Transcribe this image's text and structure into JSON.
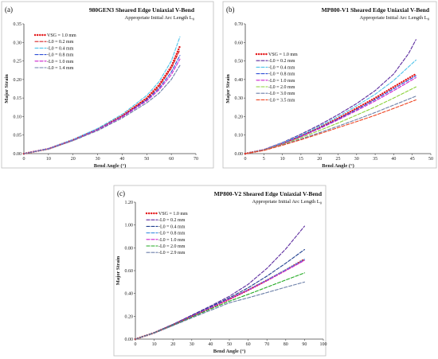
{
  "chart_data": [
    {
      "type": "line",
      "panel_label": "(a)",
      "title": "980GEN3 Sheared Edge Uniaxial V-Bend",
      "subtitle": "Appropriate Initial Arc Length L",
      "subtitle_sub": "0",
      "xlabel": "Bend Angle (°)",
      "ylabel": "Major Strain",
      "xlim": [
        0,
        70
      ],
      "ylim": [
        0,
        0.35
      ],
      "xticks": [
        "0",
        "10",
        "20",
        "30",
        "40",
        "50",
        "60",
        "70"
      ],
      "yticks": [
        "0.00",
        "0.05",
        "0.10",
        "0.15",
        "0.20",
        "0.25",
        "0.30",
        "0.35"
      ],
      "grid": false,
      "legend_position": "top-left",
      "series": [
        {
          "name": "VSG = 1.0 mm",
          "color": "#e41a1c",
          "style": "dot",
          "x": [
            0,
            10,
            20,
            30,
            40,
            50,
            55,
            60,
            63.5
          ],
          "y": [
            0,
            0.013,
            0.037,
            0.066,
            0.102,
            0.15,
            0.185,
            0.235,
            0.29
          ]
        },
        {
          "name": "-L0 = 0.2 mm",
          "color": "#d62728",
          "style": "dash",
          "x": [
            0,
            10,
            20,
            30,
            40,
            50,
            55,
            60,
            63.5
          ],
          "y": [
            0,
            0.013,
            0.036,
            0.065,
            0.1,
            0.147,
            0.181,
            0.23,
            0.28
          ]
        },
        {
          "name": "-L0 = 0.4 mm",
          "color": "#4ec3ea",
          "style": "dash",
          "x": [
            0,
            10,
            20,
            30,
            40,
            50,
            55,
            60,
            63.5
          ],
          "y": [
            0,
            0.014,
            0.038,
            0.068,
            0.106,
            0.157,
            0.194,
            0.25,
            0.315
          ]
        },
        {
          "name": "-L0 = 0.8 mm",
          "color": "#2f4fd6",
          "style": "dash",
          "x": [
            0,
            10,
            20,
            30,
            40,
            50,
            55,
            60,
            63.5
          ],
          "y": [
            0,
            0.013,
            0.036,
            0.065,
            0.1,
            0.145,
            0.176,
            0.22,
            0.265
          ]
        },
        {
          "name": "-L0 = 1.0 mm",
          "color": "#cc22cc",
          "style": "dash",
          "x": [
            0,
            10,
            20,
            30,
            40,
            50,
            55,
            60,
            63.5
          ],
          "y": [
            0,
            0.013,
            0.036,
            0.064,
            0.099,
            0.142,
            0.172,
            0.213,
            0.255
          ]
        },
        {
          "name": "-L0 = 1.4 mm",
          "color": "#6b7fa8",
          "style": "dash",
          "x": [
            0,
            10,
            20,
            30,
            40,
            50,
            55,
            60,
            63.5
          ],
          "y": [
            0,
            0.012,
            0.035,
            0.062,
            0.096,
            0.137,
            0.163,
            0.2,
            0.238
          ]
        }
      ]
    },
    {
      "type": "line",
      "panel_label": "(b)",
      "title": "MP800-V1 Sheared Edge Uniaxial V-Bend",
      "subtitle": "Appropriate Initial Arc Length L",
      "subtitle_sub": "0",
      "xlabel": "Bend Angle (°)",
      "ylabel": "Major Strain",
      "xlim": [
        0,
        50
      ],
      "ylim": [
        0,
        0.7
      ],
      "xticks": [
        "0",
        "5",
        "10",
        "15",
        "20",
        "25",
        "30",
        "35",
        "40",
        "45",
        "50"
      ],
      "yticks": [
        "0.00",
        "0.10",
        "0.20",
        "0.30",
        "0.40",
        "0.50",
        "0.60",
        "0.70"
      ],
      "grid": false,
      "legend_position": "top-left",
      "series": [
        {
          "name": "VSG = 1.0 mm",
          "color": "#e41a1c",
          "style": "dot",
          "x": [
            0,
            5,
            10,
            15,
            20,
            25,
            30,
            35,
            40,
            46
          ],
          "y": [
            0,
            0.02,
            0.055,
            0.095,
            0.14,
            0.19,
            0.245,
            0.3,
            0.36,
            0.43
          ]
        },
        {
          "name": "-L0 = 0.2 mm",
          "color": "#5b2a9e",
          "style": "dash",
          "x": [
            0,
            5,
            10,
            15,
            20,
            25,
            30,
            35,
            40,
            44,
            46
          ],
          "y": [
            0,
            0.022,
            0.06,
            0.105,
            0.155,
            0.21,
            0.27,
            0.34,
            0.43,
            0.54,
            0.615
          ]
        },
        {
          "name": "-L0 = 0.4 mm",
          "color": "#4ec3ea",
          "style": "dash",
          "x": [
            0,
            5,
            10,
            15,
            20,
            25,
            30,
            35,
            40,
            46
          ],
          "y": [
            0,
            0.021,
            0.058,
            0.1,
            0.148,
            0.2,
            0.258,
            0.32,
            0.395,
            0.505
          ]
        },
        {
          "name": "-L0 = 0.8 mm",
          "color": "#2f4fd6",
          "style": "dash",
          "x": [
            0,
            5,
            10,
            15,
            20,
            25,
            30,
            35,
            40,
            46
          ],
          "y": [
            0,
            0.02,
            0.054,
            0.094,
            0.138,
            0.186,
            0.238,
            0.292,
            0.35,
            0.42
          ]
        },
        {
          "name": "-L0 = 1.0 mm",
          "color": "#cc22cc",
          "style": "dash",
          "x": [
            0,
            5,
            10,
            15,
            20,
            25,
            30,
            35,
            40,
            46
          ],
          "y": [
            0,
            0.02,
            0.053,
            0.092,
            0.135,
            0.182,
            0.232,
            0.284,
            0.34,
            0.41
          ]
        },
        {
          "name": "-L0 = 2.0 mm",
          "color": "#8bd23a",
          "style": "dash",
          "x": [
            0,
            5,
            10,
            15,
            20,
            25,
            30,
            35,
            40,
            46
          ],
          "y": [
            0,
            0.019,
            0.05,
            0.086,
            0.125,
            0.165,
            0.208,
            0.252,
            0.3,
            0.36
          ]
        },
        {
          "name": "-L0 = 3.0 mm",
          "color": "#6b7fa8",
          "style": "dash",
          "x": [
            0,
            5,
            10,
            15,
            20,
            25,
            30,
            35,
            40,
            46
          ],
          "y": [
            0,
            0.018,
            0.047,
            0.079,
            0.113,
            0.148,
            0.184,
            0.222,
            0.262,
            0.31
          ]
        },
        {
          "name": "-L0 = 3.5 mm",
          "color": "#ee4422",
          "style": "dash",
          "x": [
            0,
            5,
            10,
            15,
            20,
            25,
            30,
            35,
            40,
            46
          ],
          "y": [
            0,
            0.017,
            0.045,
            0.075,
            0.107,
            0.14,
            0.173,
            0.207,
            0.244,
            0.29
          ]
        }
      ]
    },
    {
      "type": "line",
      "panel_label": "(c)",
      "title": "MP800-V2 Sheared Edge Uniaxial V-Bend",
      "subtitle": "Appropriate Initial Arc Length L",
      "subtitle_sub": "0",
      "xlabel": "Bend Angle (°)",
      "ylabel": "Major Strain",
      "xlim": [
        0,
        100
      ],
      "ylim": [
        0,
        1.2
      ],
      "xticks": [
        "0",
        "10",
        "20",
        "30",
        "40",
        "50",
        "60",
        "70",
        "80",
        "90",
        "100"
      ],
      "yticks": [
        "0.00",
        "0.20",
        "0.40",
        "0.60",
        "0.80",
        "1.00",
        "1.20"
      ],
      "grid": false,
      "legend_position": "top-left",
      "series": [
        {
          "name": "VSG = 1.0 mm",
          "color": "#e41a1c",
          "style": "dot",
          "x": [
            0,
            10,
            20,
            30,
            40,
            50,
            60,
            70,
            80,
            90
          ],
          "y": [
            0,
            0.055,
            0.125,
            0.2,
            0.275,
            0.35,
            0.43,
            0.515,
            0.605,
            0.7
          ]
        },
        {
          "name": "-L0 = 0.2 mm",
          "color": "#5b2a9e",
          "style": "dash",
          "x": [
            0,
            10,
            20,
            30,
            40,
            50,
            60,
            70,
            80,
            90
          ],
          "y": [
            0,
            0.057,
            0.13,
            0.21,
            0.29,
            0.375,
            0.48,
            0.62,
            0.79,
            0.99
          ]
        },
        {
          "name": "-L0 = 0.4 mm",
          "color": "#1f3f8f",
          "style": "dash",
          "x": [
            0,
            10,
            20,
            30,
            40,
            50,
            60,
            70,
            80,
            90
          ],
          "y": [
            0,
            0.056,
            0.128,
            0.205,
            0.283,
            0.362,
            0.45,
            0.552,
            0.665,
            0.785
          ]
        },
        {
          "name": "-L0 = 0.8 mm",
          "color": "#3d8fe0",
          "style": "dash",
          "x": [
            0,
            10,
            20,
            30,
            40,
            50,
            60,
            70,
            80,
            90
          ],
          "y": [
            0,
            0.055,
            0.126,
            0.201,
            0.277,
            0.352,
            0.432,
            0.518,
            0.608,
            0.7
          ]
        },
        {
          "name": "-L0 = 1.0 mm",
          "color": "#cc22cc",
          "style": "dash",
          "x": [
            0,
            10,
            20,
            30,
            40,
            50,
            60,
            70,
            80,
            90
          ],
          "y": [
            0,
            0.055,
            0.125,
            0.2,
            0.275,
            0.35,
            0.428,
            0.512,
            0.6,
            0.69
          ]
        },
        {
          "name": "-L0 = 2.0 mm",
          "color": "#22aa22",
          "style": "dash",
          "x": [
            0,
            10,
            20,
            30,
            40,
            50,
            60,
            70,
            80,
            90
          ],
          "y": [
            0,
            0.054,
            0.122,
            0.193,
            0.264,
            0.332,
            0.392,
            0.455,
            0.518,
            0.58
          ]
        },
        {
          "name": "-L0 = 2.9 mm",
          "color": "#6b7fa8",
          "style": "dash",
          "x": [
            0,
            10,
            20,
            30,
            40,
            50,
            60,
            70,
            80,
            90
          ],
          "y": [
            0,
            0.052,
            0.118,
            0.186,
            0.252,
            0.318,
            0.362,
            0.408,
            0.455,
            0.5
          ]
        }
      ]
    }
  ]
}
